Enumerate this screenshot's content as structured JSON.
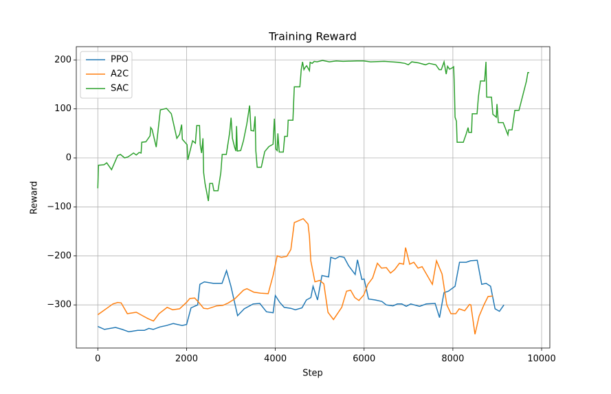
{
  "chart_data": {
    "type": "line",
    "title": "Training Reward",
    "x_label": "Step",
    "y_label": "Reward",
    "xlim": [
      -485,
      10185
    ],
    "ylim": [
      -388,
      227
    ],
    "xticks": [
      0,
      2000,
      4000,
      6000,
      8000,
      10000
    ],
    "yticks": [
      {
        "value": -300,
        "label": "−300"
      },
      {
        "value": -200,
        "label": "−200"
      },
      {
        "value": -100,
        "label": "−100"
      },
      0,
      100,
      200
    ],
    "grid": true,
    "legend": "upper left",
    "series": [
      {
        "name": "PPO",
        "color": "#1f77b4",
        "x": [
          0,
          150,
          400,
          550,
          700,
          900,
          1050,
          1150,
          1250,
          1400,
          1550,
          1700,
          1900,
          2000,
          2100,
          2250,
          2300,
          2400,
          2600,
          2800,
          2900,
          3000,
          3150,
          3300,
          3500,
          3650,
          3800,
          3950,
          4000,
          4100,
          4200,
          4350,
          4450,
          4600,
          4700,
          4800,
          4850,
          4950,
          5050,
          5200,
          5250,
          5350,
          5450,
          5550,
          5650,
          5800,
          5850,
          5950,
          6000,
          6100,
          6250,
          6400,
          6500,
          6650,
          6750,
          6850,
          6950,
          7050,
          7250,
          7400,
          7600,
          7700,
          7800,
          7900,
          8050,
          8150,
          8300,
          8400,
          8550,
          8650,
          8750,
          8850,
          8950,
          9050,
          9150
        ],
        "values": [
          -344,
          -350,
          -346,
          -350,
          -355,
          -352,
          -352,
          -348,
          -350,
          -345,
          -342,
          -338,
          -342,
          -340,
          -306,
          -300,
          -258,
          -253,
          -256,
          -256,
          -230,
          -262,
          -322,
          -308,
          -298,
          -297,
          -314,
          -316,
          -281,
          -295,
          -305,
          -307,
          -310,
          -306,
          -290,
          -285,
          -262,
          -290,
          -240,
          -243,
          -203,
          -206,
          -201,
          -203,
          -220,
          -238,
          -208,
          -248,
          -247,
          -288,
          -290,
          -293,
          -300,
          -302,
          -298,
          -298,
          -303,
          -298,
          -303,
          -298,
          -297,
          -326,
          -275,
          -272,
          -262,
          -213,
          -213,
          -210,
          -209,
          -258,
          -256,
          -262,
          -308,
          -313,
          -300
        ]
      },
      {
        "name": "A2C",
        "color": "#ff7f0e",
        "x": [
          0,
          108,
          232,
          341,
          449,
          526,
          666,
          867,
          1006,
          1130,
          1254,
          1378,
          1563,
          1687,
          1842,
          1997,
          2074,
          2183,
          2276,
          2384,
          2477,
          2678,
          2817,
          2941,
          3081,
          3282,
          3359,
          3514,
          3669,
          3839,
          3948,
          4041,
          4134,
          4257,
          4350,
          4428,
          4629,
          4737,
          4768,
          4799,
          4892,
          5000,
          5093,
          5186,
          5310,
          5496,
          5604,
          5697,
          5790,
          5883,
          5991,
          6084,
          6192,
          6300,
          6393,
          6502,
          6595,
          6688,
          6796,
          6889,
          6935,
          7028,
          7121,
          7214,
          7307,
          7539,
          7632,
          7756,
          7864,
          7957,
          8065,
          8142,
          8266,
          8375,
          8406,
          8499,
          8592,
          8700,
          8793,
          8901
        ],
        "values": [
          -320,
          -313,
          -305,
          -298,
          -295,
          -296,
          -318,
          -315,
          -322,
          -328,
          -333,
          -318,
          -305,
          -310,
          -308,
          -295,
          -287,
          -286,
          -295,
          -307,
          -308,
          -302,
          -301,
          -296,
          -288,
          -270,
          -267,
          -274,
          -276,
          -277,
          -240,
          -200,
          -203,
          -201,
          -187,
          -132,
          -124,
          -135,
          -160,
          -210,
          -253,
          -250,
          -257,
          -315,
          -330,
          -305,
          -272,
          -270,
          -285,
          -291,
          -280,
          -258,
          -245,
          -215,
          -225,
          -224,
          -235,
          -228,
          -215,
          -217,
          -183,
          -217,
          -213,
          -225,
          -222,
          -258,
          -210,
          -237,
          -300,
          -318,
          -318,
          -308,
          -312,
          -299,
          -300,
          -360,
          -323,
          -300,
          -283,
          -282
        ]
      },
      {
        "name": "SAC",
        "color": "#2ca02c",
        "x": [
          0,
          15,
          139,
          201,
          310,
          449,
          511,
          604,
          681,
          805,
          867,
          929,
          975,
          991,
          1084,
          1177,
          1192,
          1223,
          1316,
          1409,
          1548,
          1656,
          1780,
          1842,
          1889,
          1904,
          2012,
          2028,
          2136,
          2198,
          2229,
          2291,
          2307,
          2338,
          2369,
          2384,
          2415,
          2492,
          2523,
          2585,
          2616,
          2709,
          2771,
          2802,
          2895,
          2972,
          3003,
          3034,
          3081,
          3112,
          3127,
          3143,
          3220,
          3282,
          3359,
          3421,
          3452,
          3514,
          3545,
          3560,
          3591,
          3684,
          3762,
          3855,
          3948,
          3978,
          4010,
          4041,
          4057,
          4088,
          4180,
          4211,
          4273,
          4289,
          4397,
          4428,
          4552,
          4583,
          4613,
          4644,
          4675,
          4706,
          4768,
          4784,
          4830,
          4876,
          4938,
          5062,
          5217,
          5372,
          5527,
          5836,
          5991,
          6146,
          6455,
          6765,
          6920,
          6997,
          7074,
          7229,
          7384,
          7462,
          7616,
          7694,
          7740,
          7802,
          7849,
          7880,
          7926,
          7972,
          8019,
          8034,
          8050,
          8081,
          8096,
          8236,
          8297,
          8344,
          8359,
          8421,
          8437,
          8545,
          8576,
          8622,
          8715,
          8746,
          8762,
          8870,
          8901,
          8978,
          8994,
          9025,
          9133,
          9241,
          9257,
          9334,
          9396,
          9489,
          9582,
          9659,
          9690,
          9721
        ],
        "values": [
          -62,
          -15,
          -14,
          -10,
          -24,
          5,
          7,
          0,
          2,
          10,
          6,
          11,
          10,
          32,
          33,
          45,
          62,
          58,
          22,
          98,
          101,
          90,
          40,
          48,
          68,
          38,
          27,
          -4,
          35,
          30,
          66,
          66,
          27,
          10,
          40,
          -30,
          -52,
          -88,
          -52,
          -52,
          -67,
          -67,
          -30,
          7,
          7,
          52,
          82,
          40,
          22,
          14,
          65,
          14,
          15,
          35,
          70,
          107,
          56,
          55,
          85,
          15,
          -19,
          -19,
          13,
          23,
          28,
          80,
          18,
          15,
          50,
          12,
          12,
          44,
          44,
          77,
          77,
          145,
          145,
          180,
          196,
          180,
          185,
          188,
          178,
          195,
          193,
          197,
          196,
          199,
          196,
          198,
          197,
          198,
          198,
          196,
          197,
          195,
          193,
          190,
          196,
          194,
          190,
          193,
          190,
          180,
          180,
          196,
          171,
          187,
          181,
          183,
          186,
          145,
          83,
          75,
          32,
          32,
          48,
          62,
          52,
          52,
          90,
          90,
          125,
          157,
          157,
          196,
          124,
          124,
          89,
          83,
          110,
          72,
          72,
          47,
          57,
          57,
          97,
          97,
          130,
          157,
          174,
          174
        ]
      }
    ]
  }
}
